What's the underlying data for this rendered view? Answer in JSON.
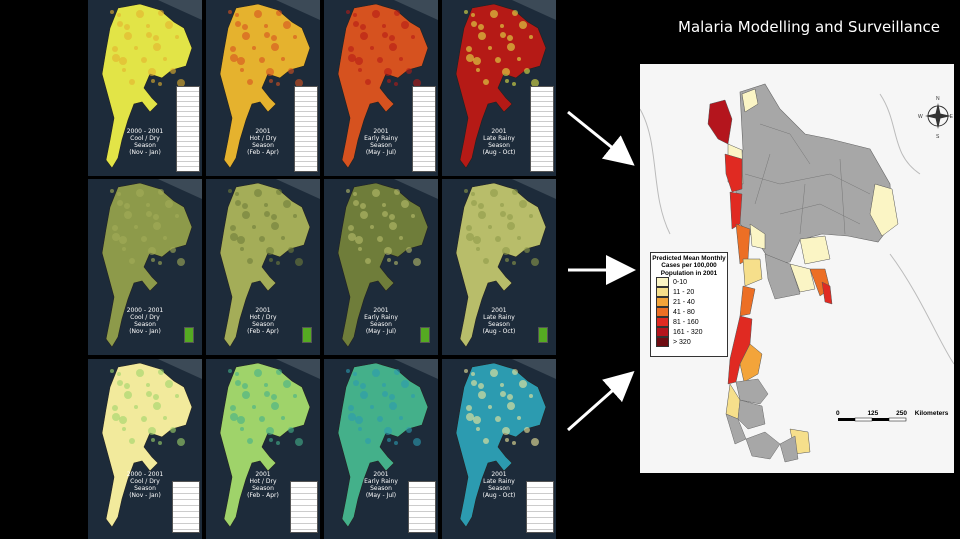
{
  "slide": {
    "title": "Malaria Modelling and Surveillance"
  },
  "panel_captions": [
    "2000 - 2001\nCool / Dry\nSeason\n(Nov - Jan)",
    "2001\nHot / Dry\nSeason\n(Feb - Apr)",
    "2001\nEarly Rainy\nSeason\n(May - Jul)",
    "2001\nLate Rainy\nSeason\n(Aug - Oct)"
  ],
  "row_themes": [
    {
      "name": "temperature",
      "colors": [
        "#e2e447",
        "#e5b22e",
        "#d6521f",
        "#b51a16"
      ]
    },
    {
      "name": "vegetation",
      "colors": [
        "#8d9a4a",
        "#a4ad58",
        "#6f7d3a",
        "#b8bd6a"
      ]
    },
    {
      "name": "precipitation",
      "colors": [
        "#f2ea9c",
        "#9fd36a",
        "#44b08a",
        "#2c9bb0"
      ]
    }
  ],
  "map": {
    "legend_title": "Predicted Mean Monthly Cases per 100,000 Population in 2001",
    "legend_items": [
      {
        "label": "0-10",
        "color": "#fbf5c5"
      },
      {
        "label": "11 - 20",
        "color": "#f6df8b"
      },
      {
        "label": "21 - 40",
        "color": "#f3a43a"
      },
      {
        "label": "41 - 80",
        "color": "#ec6f25"
      },
      {
        "label": "81 - 160",
        "color": "#e02a22"
      },
      {
        "label": "161 - 320",
        "color": "#b4151d"
      },
      {
        "label": "> 320",
        "color": "#6e0c12"
      }
    ],
    "scale_ticks": [
      "0",
      "125",
      "250"
    ],
    "scale_unit": "Kilometers",
    "compass": {
      "n": "N",
      "s": "S",
      "e": "E",
      "w": "W"
    },
    "no_data_color": "#a7a7a7"
  }
}
